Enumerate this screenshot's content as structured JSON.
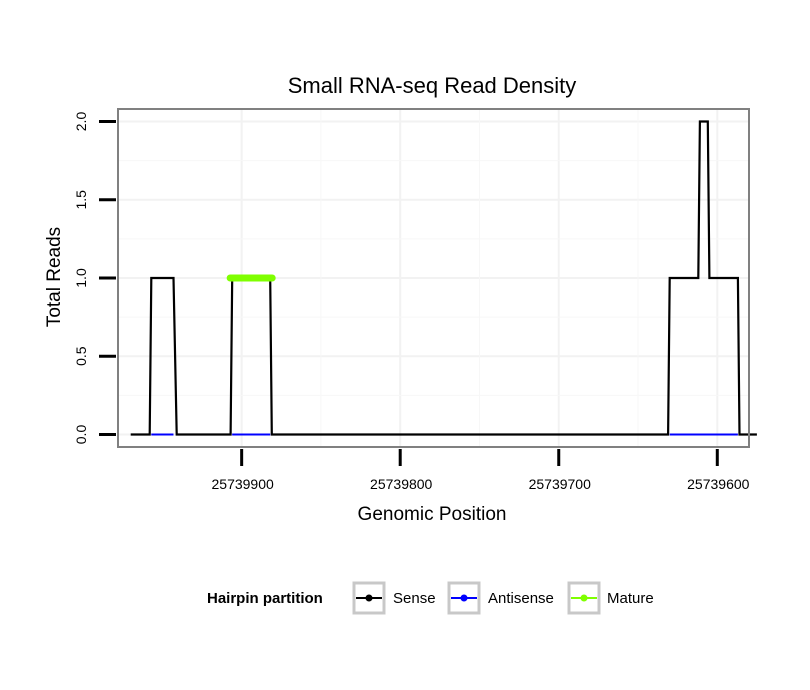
{
  "chart_data": {
    "type": "line",
    "title": "Small RNA-seq Read Density",
    "xlabel": "Genomic Position",
    "ylabel": "Total Reads",
    "x_reversed": true,
    "xlim": [
      25739978,
      25739580
    ],
    "ylim": [
      -0.08,
      2.08
    ],
    "x_ticks": [
      25739900,
      25739800,
      25739700,
      25739600
    ],
    "y_ticks": [
      0.0,
      0.5,
      1.0,
      1.5,
      2.0
    ],
    "y_tick_labels": [
      "0.0",
      "0.5",
      "1.0",
      "1.5",
      "2.0"
    ],
    "grid": true,
    "legend": {
      "position": "bottom",
      "title": "Hairpin partition",
      "entries": [
        {
          "label": "Sense",
          "color": "#000000"
        },
        {
          "label": "Antisense",
          "color": "#0000ff"
        },
        {
          "label": "Mature",
          "color": "#7fff00"
        }
      ]
    },
    "series": [
      {
        "name": "Sense",
        "color": "#000000",
        "points": [
          {
            "x": 25739970,
            "y": 0
          },
          {
            "x": 25739958,
            "y": 0
          },
          {
            "x": 25739957,
            "y": 1
          },
          {
            "x": 25739943,
            "y": 1
          },
          {
            "x": 25739941,
            "y": 0
          },
          {
            "x": 25739907,
            "y": 0
          },
          {
            "x": 25739906,
            "y": 1
          },
          {
            "x": 25739882,
            "y": 1
          },
          {
            "x": 25739881,
            "y": 0
          },
          {
            "x": 25739631,
            "y": 0
          },
          {
            "x": 25739630,
            "y": 1
          },
          {
            "x": 25739612,
            "y": 1
          },
          {
            "x": 25739611,
            "y": 2
          },
          {
            "x": 25739606,
            "y": 2
          },
          {
            "x": 25739605,
            "y": 1
          },
          {
            "x": 25739587,
            "y": 1
          },
          {
            "x": 25739586,
            "y": 0
          },
          {
            "x": 25739575,
            "y": 0
          }
        ]
      },
      {
        "name": "Antisense",
        "color": "#0000ff",
        "points": [
          {
            "x": 25739957,
            "y": 0
          },
          {
            "x": 25739943,
            "y": 0
          },
          {
            "x": 25739906,
            "y": 0
          },
          {
            "x": 25739882,
            "y": 0
          },
          {
            "x": 25739630,
            "y": 0
          },
          {
            "x": 25739587,
            "y": 0
          }
        ],
        "segments": [
          [
            25739957,
            25739943
          ],
          [
            25739906,
            25739882
          ],
          [
            25739630,
            25739587
          ]
        ]
      },
      {
        "name": "Mature",
        "color": "#7fff00",
        "points": [
          {
            "x": 25739906,
            "y": 1
          },
          {
            "x": 25739882,
            "y": 1
          }
        ]
      }
    ]
  }
}
